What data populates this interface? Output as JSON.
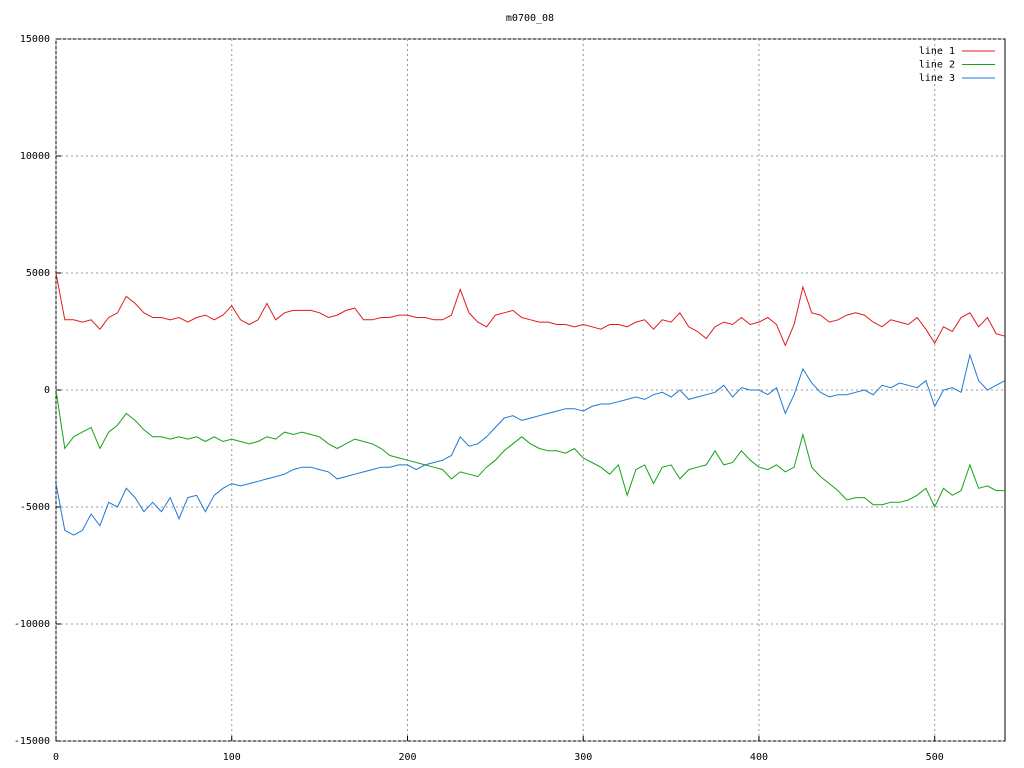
{
  "chart_data": {
    "type": "line",
    "title": "m0700_08",
    "x": [
      0,
      5,
      10,
      15,
      20,
      25,
      30,
      35,
      40,
      45,
      50,
      55,
      60,
      65,
      70,
      75,
      80,
      85,
      90,
      95,
      100,
      105,
      110,
      115,
      120,
      125,
      130,
      135,
      140,
      145,
      150,
      155,
      160,
      165,
      170,
      175,
      180,
      185,
      190,
      195,
      200,
      205,
      210,
      215,
      220,
      225,
      230,
      235,
      240,
      245,
      250,
      255,
      260,
      265,
      270,
      275,
      280,
      285,
      290,
      295,
      300,
      305,
      310,
      315,
      320,
      325,
      330,
      335,
      340,
      345,
      350,
      355,
      360,
      365,
      370,
      375,
      380,
      385,
      390,
      395,
      400,
      405,
      410,
      415,
      420,
      425,
      430,
      435,
      440,
      445,
      450,
      455,
      460,
      465,
      470,
      475,
      480,
      485,
      490,
      495,
      500,
      505,
      510,
      515,
      520,
      525,
      530,
      535,
      540
    ],
    "series": [
      {
        "name": "line 1",
        "color": "#e41a1c",
        "values": [
          5000,
          3000,
          3000,
          2900,
          3000,
          2600,
          3100,
          3300,
          4000,
          3700,
          3300,
          3100,
          3100,
          3000,
          3100,
          2900,
          3100,
          3200,
          3000,
          3200,
          3600,
          3000,
          2800,
          3000,
          3700,
          3000,
          3300,
          3400,
          3400,
          3400,
          3300,
          3100,
          3200,
          3400,
          3500,
          3000,
          3000,
          3100,
          3100,
          3200,
          3200,
          3100,
          3100,
          3000,
          3000,
          3200,
          4300,
          3300,
          2900,
          2700,
          3200,
          3300,
          3400,
          3100,
          3000,
          2900,
          2900,
          2800,
          2800,
          2700,
          2800,
          2700,
          2600,
          2800,
          2800,
          2700,
          2900,
          3000,
          2600,
          3000,
          2900,
          3300,
          2700,
          2500,
          2200,
          2700,
          2900,
          2800,
          3100,
          2800,
          2900,
          3100,
          2800,
          1900,
          2800,
          4400,
          3300,
          3200,
          2900,
          3000,
          3200,
          3300,
          3200,
          2900,
          2700,
          3000,
          2900,
          2800,
          3100,
          2600,
          2000,
          2700,
          2500,
          3100,
          3300,
          2700,
          3100,
          2400,
          2300
        ]
      },
      {
        "name": "line 2",
        "color": "#17a317",
        "values": [
          0,
          -2500,
          -2000,
          -1800,
          -1600,
          -2500,
          -1800,
          -1500,
          -1000,
          -1300,
          -1700,
          -2000,
          -2000,
          -2100,
          -2000,
          -2100,
          -2000,
          -2200,
          -2000,
          -2200,
          -2100,
          -2200,
          -2300,
          -2200,
          -2000,
          -2100,
          -1800,
          -1900,
          -1800,
          -1900,
          -2000,
          -2300,
          -2500,
          -2300,
          -2100,
          -2200,
          -2300,
          -2500,
          -2800,
          -2900,
          -3000,
          -3100,
          -3200,
          -3300,
          -3400,
          -3800,
          -3500,
          -3600,
          -3700,
          -3300,
          -3000,
          -2600,
          -2300,
          -2000,
          -2300,
          -2500,
          -2600,
          -2600,
          -2700,
          -2500,
          -2900,
          -3100,
          -3300,
          -3600,
          -3200,
          -4500,
          -3400,
          -3200,
          -4000,
          -3300,
          -3200,
          -3800,
          -3400,
          -3300,
          -3200,
          -2600,
          -3200,
          -3100,
          -2600,
          -3000,
          -3300,
          -3400,
          -3200,
          -3500,
          -3300,
          -1900,
          -3300,
          -3700,
          -4000,
          -4300,
          -4700,
          -4600,
          -4600,
          -4900,
          -4900,
          -4800,
          -4800,
          -4700,
          -4500,
          -4200,
          -5000,
          -4200,
          -4500,
          -4300,
          -3200,
          -4200,
          -4100,
          -4300,
          -4300
        ]
      },
      {
        "name": "line 3",
        "color": "#1f78d4",
        "values": [
          -4000,
          -6000,
          -6200,
          -6000,
          -5300,
          -5800,
          -4800,
          -5000,
          -4200,
          -4600,
          -5200,
          -4800,
          -5200,
          -4600,
          -5500,
          -4600,
          -4500,
          -5200,
          -4500,
          -4200,
          -4000,
          -4100,
          -4000,
          -3900,
          -3800,
          -3700,
          -3600,
          -3400,
          -3300,
          -3300,
          -3400,
          -3500,
          -3800,
          -3700,
          -3600,
          -3500,
          -3400,
          -3300,
          -3300,
          -3200,
          -3200,
          -3400,
          -3200,
          -3100,
          -3000,
          -2800,
          -2000,
          -2400,
          -2300,
          -2000,
          -1600,
          -1200,
          -1100,
          -1300,
          -1200,
          -1100,
          -1000,
          -900,
          -800,
          -800,
          -900,
          -700,
          -600,
          -600,
          -500,
          -400,
          -300,
          -400,
          -200,
          -100,
          -300,
          0,
          -400,
          -300,
          -200,
          -100,
          200,
          -300,
          100,
          0,
          0,
          -200,
          100,
          -1000,
          -200,
          900,
          300,
          -100,
          -300,
          -200,
          -200,
          -100,
          0,
          -200,
          200,
          100,
          300,
          200,
          100,
          400,
          -700,
          0,
          100,
          -100,
          1500,
          400,
          0,
          200,
          400
        ]
      }
    ],
    "xlim": [
      0,
      540
    ],
    "xticks": [
      0,
      100,
      200,
      300,
      400,
      500
    ],
    "ylim": [
      -15000,
      15000
    ],
    "yticks": [
      -15000,
      -10000,
      -5000,
      0,
      5000,
      10000,
      15000
    ],
    "grid": true,
    "legend": "top-right"
  }
}
